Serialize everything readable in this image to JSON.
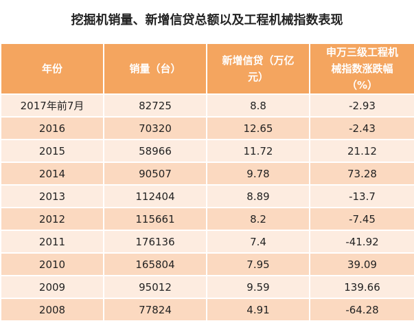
{
  "title": "挖掘机销量、新增信贷总额以及工程机械指数表现",
  "table": {
    "header": [
      "年份",
      "销量（台）",
      "新增信贷（万亿元）",
      "申万三级工程机械指数涨跌幅（%）"
    ],
    "rows": [
      [
        "2017年前7月",
        "82725",
        "8.8",
        "-2.93"
      ],
      [
        "2016",
        "70320",
        "12.65",
        "-2.43"
      ],
      [
        "2015",
        "58966",
        "11.72",
        "21.12"
      ],
      [
        "2014",
        "90507",
        "9.78",
        "73.28"
      ],
      [
        "2013",
        "112404",
        "8.89",
        "-13.7"
      ],
      [
        "2012",
        "115661",
        "8.2",
        "-7.45"
      ],
      [
        "2011",
        "176136",
        "7.4",
        "-41.92"
      ],
      [
        "2010",
        "165804",
        "7.95",
        "39.09"
      ],
      [
        "2009",
        "95012",
        "9.59",
        "139.66"
      ],
      [
        "2008",
        "77824",
        "4.91",
        "-64.28"
      ]
    ]
  }
}
